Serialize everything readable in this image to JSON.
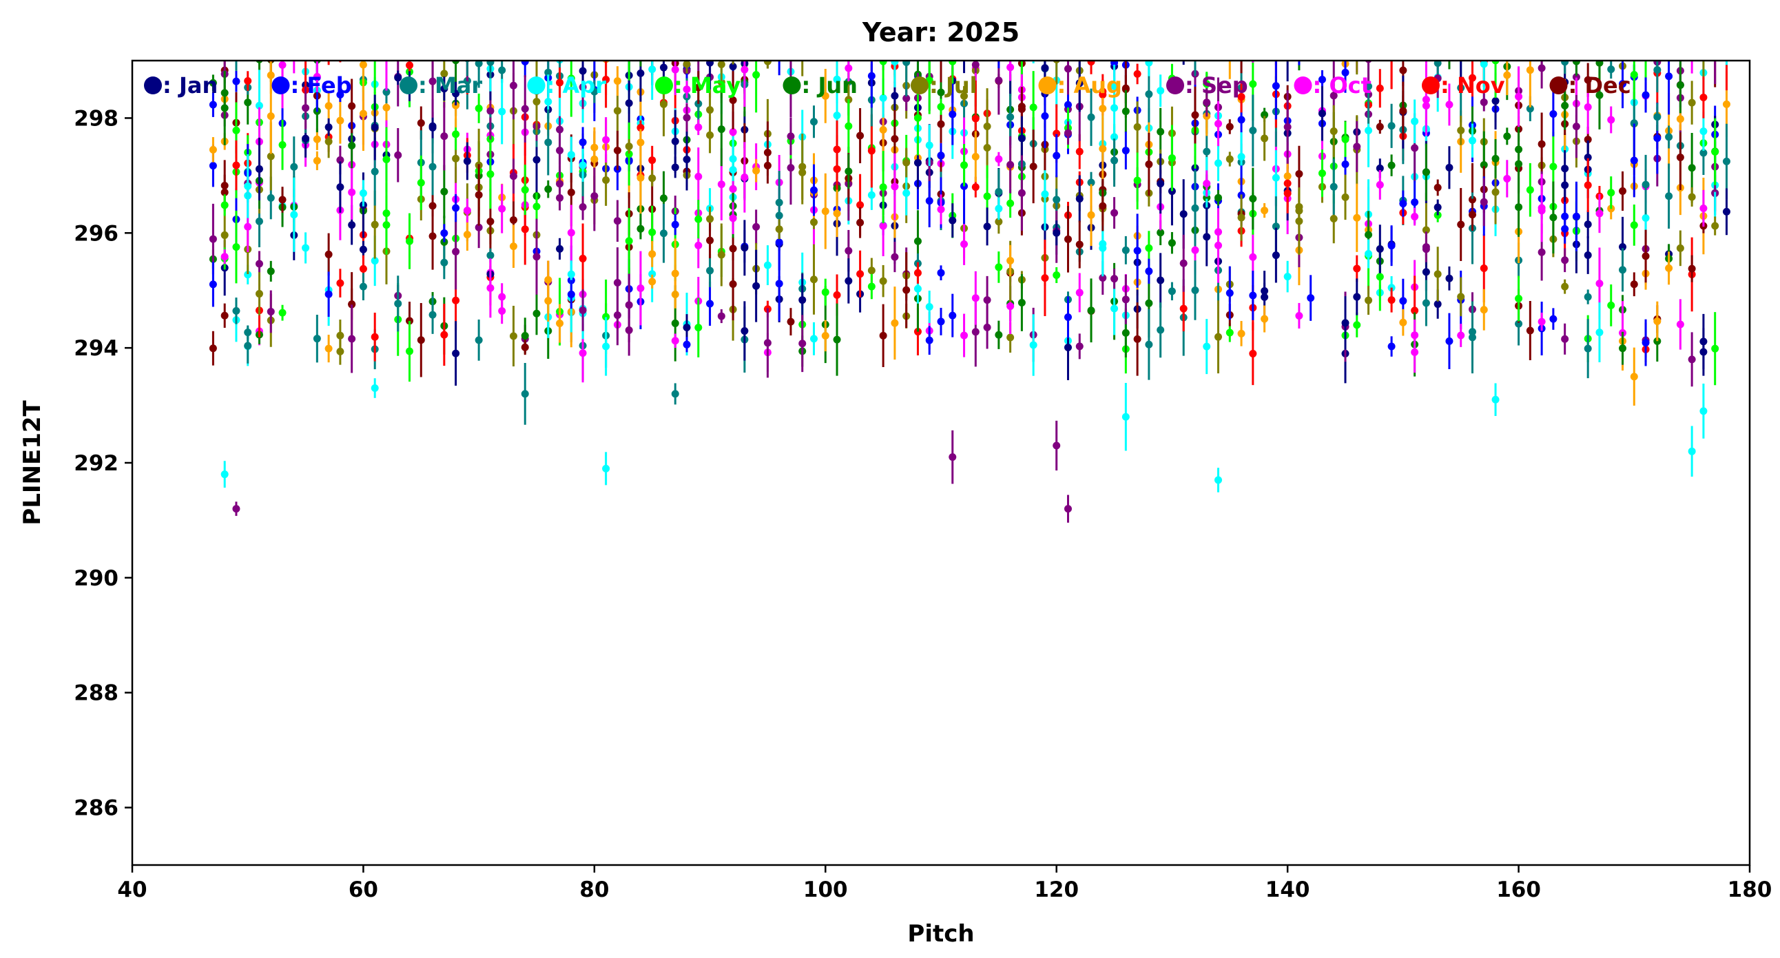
{
  "chart_data": {
    "type": "scatter",
    "title": "Year: 2025",
    "xlabel": "Pitch",
    "ylabel": "PLINE12T",
    "xlim": [
      40,
      180
    ],
    "ylim": [
      285,
      299
    ],
    "x_ticks": [
      "40",
      "60",
      "80",
      "100",
      "120",
      "140",
      "160",
      "180"
    ],
    "y_ticks": [
      "286",
      "288",
      "290",
      "292",
      "294",
      "296",
      "298"
    ],
    "grid": false,
    "legend_position": "top, inside plot, single row",
    "marker": "point with vertical error bar",
    "series": [
      {
        "name": ": Jan",
        "color": "#000080"
      },
      {
        "name": ": Feb",
        "color": "#0000ff"
      },
      {
        "name": ": Mar",
        "color": "#008080"
      },
      {
        "name": ": Apr",
        "color": "#00ffff"
      },
      {
        "name": ": May",
        "color": "#00ff00"
      },
      {
        "name": ": Jun",
        "color": "#008000"
      },
      {
        "name": ": Jul",
        "color": "#808000"
      },
      {
        "name": ": Aug",
        "color": "#ffa500"
      },
      {
        "name": ": Sep",
        "color": "#800080"
      },
      {
        "name": ": Oct",
        "color": "#ff00ff"
      },
      {
        "name": ": Nov",
        "color": "#ff0000"
      },
      {
        "name": ": Dec",
        "color": "#800000"
      }
    ],
    "notable_points": [
      {
        "x": 48,
        "y": 291.8,
        "series": ": Apr"
      },
      {
        "x": 49,
        "y": 291.2,
        "series": ": Sep"
      },
      {
        "x": 61,
        "y": 293.3,
        "series": ": Apr"
      },
      {
        "x": 74,
        "y": 293.2,
        "series": ": Mar"
      },
      {
        "x": 81,
        "y": 291.9,
        "series": ": Apr"
      },
      {
        "x": 87,
        "y": 293.2,
        "series": ": Mar"
      },
      {
        "x": 111,
        "y": 292.1,
        "series": ": Sep"
      },
      {
        "x": 120,
        "y": 292.3,
        "series": ": Sep"
      },
      {
        "x": 121,
        "y": 291.2,
        "series": ": Sep"
      },
      {
        "x": 126,
        "y": 292.8,
        "series": ": Apr"
      },
      {
        "x": 134,
        "y": 291.7,
        "series": ": Apr"
      },
      {
        "x": 158,
        "y": 293.1,
        "series": ": Apr"
      },
      {
        "x": 170,
        "y": 293.5,
        "series": ": Aug"
      },
      {
        "x": 175,
        "y": 292.2,
        "series": ": Apr"
      },
      {
        "x": 175,
        "y": 293.8,
        "series": ": Sep"
      },
      {
        "x": 176,
        "y": 292.9,
        "series": ": Apr"
      }
    ],
    "cluster_summary": {
      "x_range": [
        47,
        178
      ],
      "y_range_typical": [
        293.5,
        299
      ],
      "density": "dense, overlapping points across all months"
    }
  }
}
